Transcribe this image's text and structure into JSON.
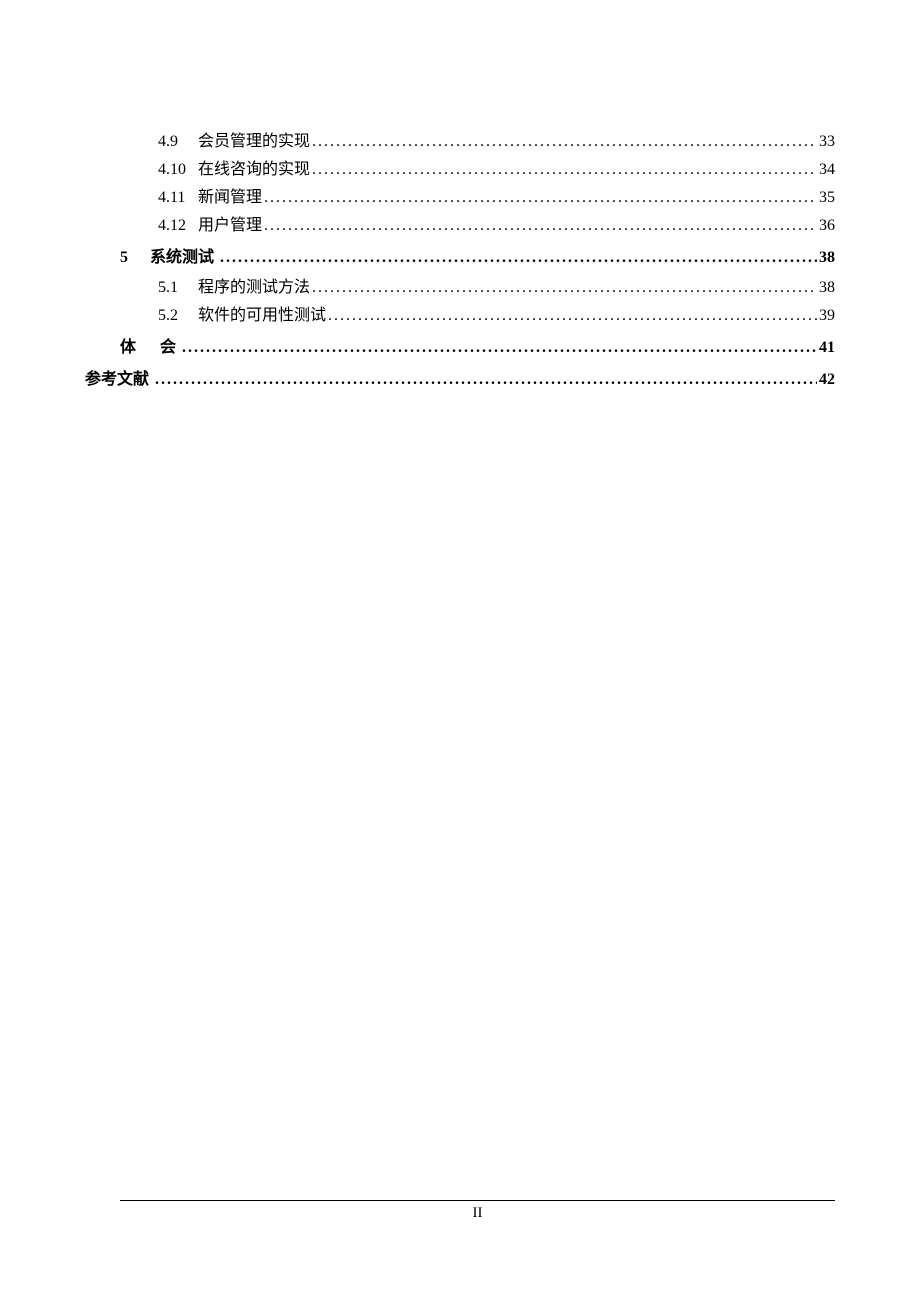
{
  "toc": {
    "entries": [
      {
        "type": "sub",
        "number": "4.9",
        "title": "会员管理的实现",
        "page": "33"
      },
      {
        "type": "sub",
        "number": "4.10",
        "title": "在线咨询的实现",
        "page": "34"
      },
      {
        "type": "sub",
        "number": "4.11",
        "title": "新闻管理",
        "page": "35"
      },
      {
        "type": "sub",
        "number": "4.12",
        "title": "用户管理",
        "page": "36"
      },
      {
        "type": "chapter",
        "number": "5",
        "title": "系统测试",
        "page": "38"
      },
      {
        "type": "sub",
        "number": "5.1",
        "title": "程序的测试方法",
        "page": "38"
      },
      {
        "type": "sub",
        "number": "5.2",
        "title": "软件的可用性测试",
        "page": "39"
      },
      {
        "type": "section-spaced",
        "number": "",
        "title_a": "体",
        "title_b": "会",
        "page": "41"
      },
      {
        "type": "section",
        "number": "",
        "title": "参考文献",
        "page": "42"
      }
    ],
    "dots": "................................................................................................................................................................"
  },
  "footer": {
    "page_number": "II"
  },
  "styles": {
    "text_color": "#000000",
    "background_color": "#ffffff",
    "font_size_body": 16,
    "font_size_footer": 15
  }
}
